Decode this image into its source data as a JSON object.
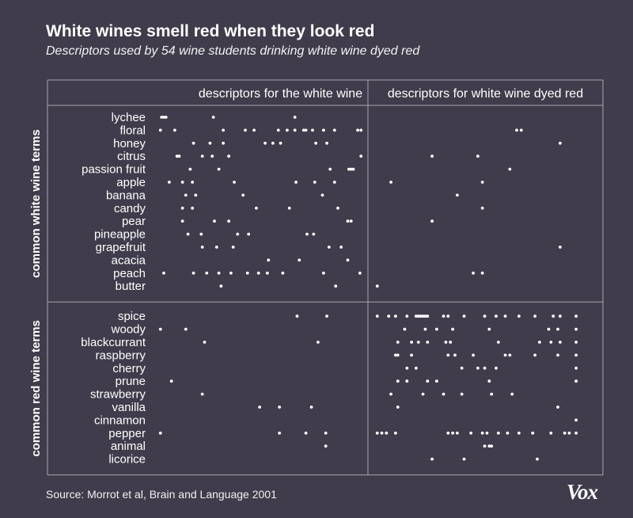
{
  "title": "White wines smell red when they look red",
  "subtitle": "Descriptors used by 54 wine students drinking white wine dyed red",
  "source": "Source: Morrot et al, Brain and Language 2001",
  "logo": "Vox",
  "colors": {
    "background": "#403c4b",
    "dot": "#ffffff",
    "gridline": "#a9a6b2",
    "text": "#ffffff"
  },
  "chart_data": {
    "type": "scatter",
    "columns": [
      "descriptors for the white wine",
      "descriptors for white wine dyed red"
    ],
    "groups": [
      {
        "label": "common white wine terms",
        "rows": [
          {
            "term": "lychee",
            "white": [
              3,
              5,
              7,
              50,
              124
            ],
            "red": []
          },
          {
            "term": "floral",
            "white": [
              2,
              15,
              59,
              79,
              87,
              109,
              117,
              124,
              132,
              134,
              140,
              150,
              160,
              181,
              184
            ],
            "red": [
              63,
              65
            ]
          },
          {
            "term": "honey",
            "white": [
              32,
              47,
              59,
              97,
              104,
              111,
              143,
              153
            ],
            "red": [
              82
            ]
          },
          {
            "term": "citrus",
            "white": [
              17,
              19,
              40,
              49,
              64,
              184
            ],
            "red": [
              26,
              46
            ]
          },
          {
            "term": "passion fruit",
            "white": [
              29,
              55,
              156,
              173,
              175,
              177
            ],
            "red": [
              60
            ]
          },
          {
            "term": "apple",
            "white": [
              10,
              22,
              31,
              69,
              125,
              142,
              160
            ],
            "red": [
              8,
              48
            ]
          },
          {
            "term": "banana",
            "white": [
              25,
              34,
              77,
              149
            ],
            "red": [
              37
            ]
          },
          {
            "term": "candy",
            "white": [
              22,
              31,
              89,
              119,
              163
            ],
            "red": [
              48
            ]
          },
          {
            "term": "pear",
            "white": [
              22,
              51,
              64,
              172,
              175
            ],
            "red": [
              26
            ]
          },
          {
            "term": "pineapple",
            "white": [
              27,
              39,
              72,
              82,
              135,
              141
            ],
            "red": []
          },
          {
            "term": "grapefruit",
            "white": [
              40,
              53,
              68,
              155,
              166
            ],
            "red": [
              82
            ]
          },
          {
            "term": "acacia",
            "white": [
              100,
              128,
              172
            ],
            "red": []
          },
          {
            "term": "peach",
            "white": [
              5,
              32,
              44,
              55,
              66,
              81,
              91,
              99,
              113,
              150,
              183
            ],
            "red": [
              44,
              48
            ]
          },
          {
            "term": "butter",
            "white": [
              57,
              161
            ],
            "red": [
              2
            ]
          }
        ]
      },
      {
        "label": "common red wine terms",
        "rows": [
          {
            "term": "spice",
            "white": [
              126,
              153
            ],
            "red": [
              2,
              7,
              10,
              15,
              19,
              20,
              21,
              22,
              23,
              24,
              31,
              33,
              40,
              49,
              54,
              58,
              64,
              71,
              79,
              82,
              89
            ]
          },
          {
            "term": "woody",
            "white": [
              2,
              25
            ],
            "red": [
              14,
              23,
              28,
              35,
              51,
              77,
              81,
              89
            ]
          },
          {
            "term": "blackcurrant",
            "white": [
              42,
              145
            ],
            "red": [
              11,
              17,
              20,
              24,
              32,
              34,
              55,
              73,
              78,
              82,
              89
            ]
          },
          {
            "term": "raspberry",
            "white": [],
            "red": [
              10,
              11,
              17,
              33,
              36,
              44,
              58,
              60,
              71,
              81,
              89
            ]
          },
          {
            "term": "cherry",
            "white": [],
            "red": [
              15,
              19,
              39,
              46,
              49,
              54,
              89
            ]
          },
          {
            "term": "prune",
            "white": [
              12
            ],
            "red": [
              11,
              15,
              24,
              28,
              51,
              89
            ]
          },
          {
            "term": "strawberry",
            "white": [
              40
            ],
            "red": [
              8,
              22,
              31,
              39,
              52,
              61
            ]
          },
          {
            "term": "vanilla",
            "white": [
              92,
              110,
              139
            ],
            "red": [
              11,
              81
            ]
          },
          {
            "term": "cinnamon",
            "white": [],
            "red": [
              89
            ]
          },
          {
            "term": "pepper",
            "white": [
              2,
              110,
              134,
              152
            ],
            "red": [
              2,
              4,
              6,
              10,
              33,
              35,
              37,
              43,
              48,
              50,
              55,
              59,
              64,
              70,
              78,
              84,
              86,
              89
            ]
          },
          {
            "term": "animal",
            "white": [
              152
            ],
            "red": [
              49,
              51,
              52
            ]
          },
          {
            "term": "licorice",
            "white": [],
            "red": [
              26,
              40,
              72
            ]
          }
        ]
      }
    ]
  }
}
